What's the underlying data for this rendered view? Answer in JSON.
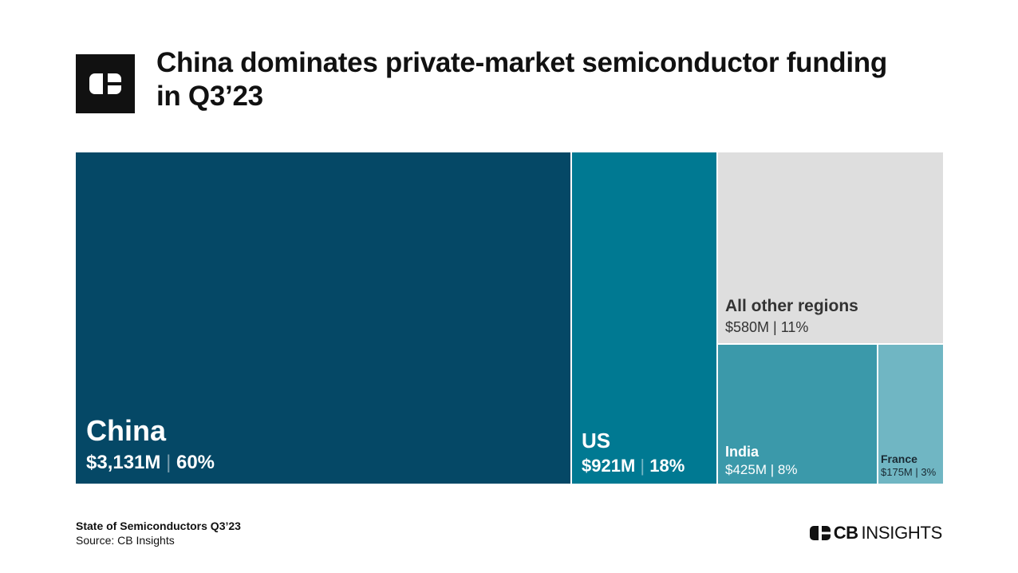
{
  "header": {
    "title_line1": "China dominates private-market semiconductor funding",
    "title_line2": "in Q3’23"
  },
  "chart_data": {
    "type": "treemap",
    "title": "China dominates private-market semiconductor funding in Q3’23",
    "unit": "$M",
    "items": [
      {
        "name": "China",
        "value": 3131,
        "share": 60,
        "value_label": "$3,131M",
        "share_label": "60%",
        "color": "#054866"
      },
      {
        "name": "US",
        "value": 921,
        "share": 18,
        "value_label": "$921M",
        "share_label": "18%",
        "color": "#007992"
      },
      {
        "name": "All other regions",
        "value": 580,
        "share": 11,
        "value_label": "$580M",
        "share_label": "11%",
        "color": "#dedede"
      },
      {
        "name": "India",
        "value": 425,
        "share": 8,
        "value_label": "$425M",
        "share_label": "8%",
        "color": "#3b99aa"
      },
      {
        "name": "France",
        "value": 175,
        "share": 3,
        "value_label": "$175M",
        "share_label": "3%",
        "color": "#70b6c3"
      }
    ]
  },
  "footer": {
    "report": "State of Semiconductors Q3’23",
    "source": "Source: CB Insights"
  },
  "brand": {
    "cb": "CB",
    "insights": "INSIGHTS"
  },
  "icons": {
    "header_logo": "cb-logo-icon",
    "footer_logo": "cb-logo-icon"
  }
}
